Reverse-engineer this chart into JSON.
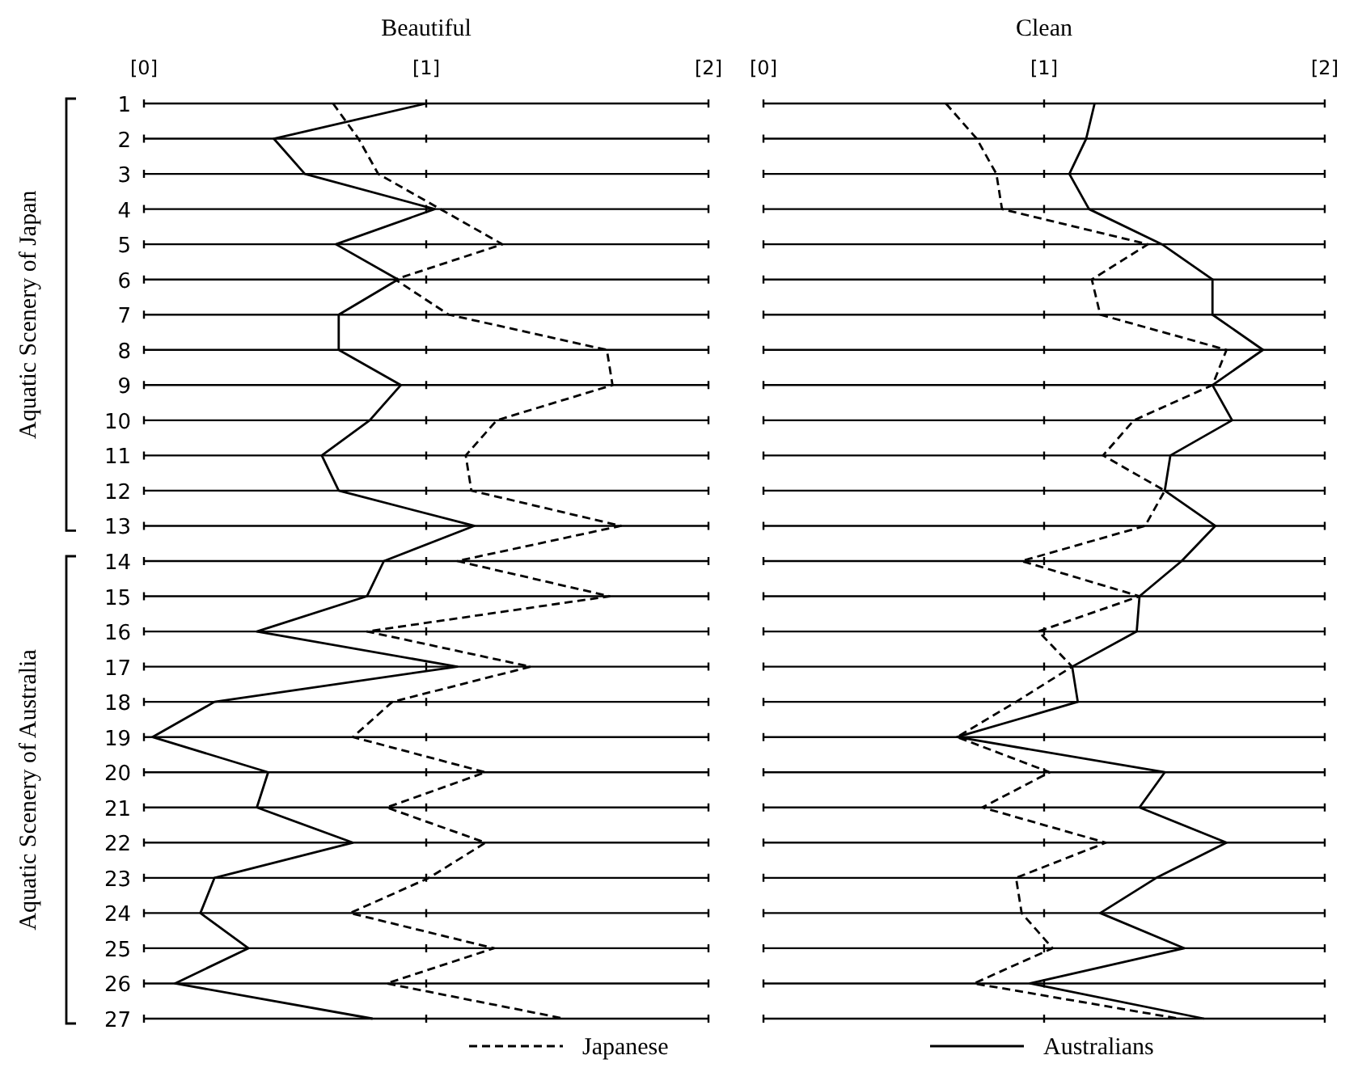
{
  "chart_data": [
    {
      "type": "line",
      "orientation": "horizontal",
      "title": "Beautiful",
      "categories": [
        "1",
        "2",
        "3",
        "4",
        "5",
        "6",
        "7",
        "8",
        "9",
        "10",
        "11",
        "12",
        "13",
        "14",
        "15",
        "16",
        "17",
        "18",
        "19",
        "20",
        "21",
        "22",
        "23",
        "24",
        "25",
        "26",
        "27"
      ],
      "xlim": [
        0,
        2
      ],
      "xticks": [
        {
          "value": 0,
          "label": "[0]"
        },
        {
          "value": 1,
          "label": "[1]"
        },
        {
          "value": 2,
          "label": "[2]"
        }
      ],
      "grid": true,
      "marker": "none",
      "annotations": [
        "Aquatic Scenery of Japan",
        "Aquatic Scenery of Australia"
      ],
      "ref_lines": [
        {
          "axis": "x",
          "value": 1
        }
      ],
      "series": [
        {
          "color": "#000000",
          "line_style": "dashed",
          "values": [
            0.67,
            0.76,
            0.83,
            1.05,
            1.27,
            0.89,
            1.08,
            1.64,
            1.66,
            1.25,
            1.14,
            1.16,
            1.69,
            1.11,
            1.65,
            0.79,
            1.37,
            0.88,
            0.74,
            1.21,
            0.86,
            1.21,
            1.01,
            0.73,
            1.24,
            0.86,
            1.49
          ]
        },
        {
          "color": "#000000",
          "line_style": "solid",
          "values": [
            1.0,
            0.46,
            0.57,
            1.03,
            0.68,
            0.9,
            0.69,
            0.69,
            0.91,
            0.8,
            0.63,
            0.69,
            1.17,
            0.85,
            0.79,
            0.4,
            1.11,
            0.25,
            0.03,
            0.44,
            0.4,
            0.74,
            0.25,
            0.2,
            0.37,
            0.11,
            0.81
          ]
        }
      ]
    },
    {
      "type": "line",
      "orientation": "horizontal",
      "title": "Clean",
      "categories": [
        "1",
        "2",
        "3",
        "4",
        "5",
        "6",
        "7",
        "8",
        "9",
        "10",
        "11",
        "12",
        "13",
        "14",
        "15",
        "16",
        "17",
        "18",
        "19",
        "20",
        "21",
        "22",
        "23",
        "24",
        "25",
        "26",
        "27"
      ],
      "xlim": [
        0,
        2
      ],
      "xticks": [
        {
          "value": 0,
          "label": "[0]"
        },
        {
          "value": 1,
          "label": "[1]"
        },
        {
          "value": 2,
          "label": "[2]"
        }
      ],
      "grid": true,
      "legend": "bottom",
      "marker": "none",
      "tick_labels": "x",
      "ref_lines": [
        {
          "axis": "x",
          "value": 1
        }
      ],
      "series": [
        {
          "name": "Japanese",
          "color": "#000000",
          "line_style": "dashed",
          "values": [
            0.65,
            0.76,
            0.83,
            0.85,
            1.37,
            1.17,
            1.2,
            1.65,
            1.6,
            1.32,
            1.21,
            1.43,
            1.36,
            0.92,
            1.34,
            0.98,
            1.1,
            0.9,
            0.69,
            1.02,
            0.78,
            1.22,
            0.9,
            0.92,
            1.03,
            0.75,
            1.48
          ]
        },
        {
          "name": "Australians",
          "color": "#000000",
          "line_style": "solid",
          "values": [
            1.18,
            1.15,
            1.09,
            1.16,
            1.42,
            1.6,
            1.6,
            1.78,
            1.6,
            1.67,
            1.45,
            1.43,
            1.61,
            1.49,
            1.34,
            1.33,
            1.1,
            1.12,
            0.69,
            1.43,
            1.34,
            1.65,
            1.4,
            1.2,
            1.5,
            0.95,
            1.57
          ]
        }
      ]
    }
  ]
}
